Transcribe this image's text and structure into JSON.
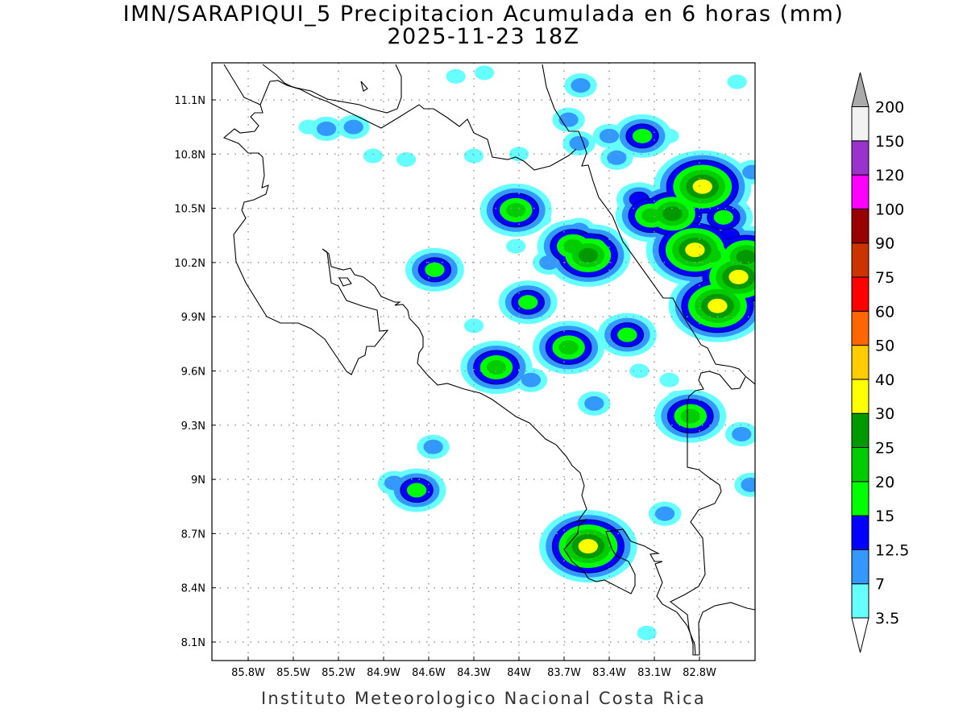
{
  "title": {
    "line1": "IMN/SARAPIQUI_5 Precipitacion Acumulada en 6 horas (mm)",
    "line2": "2025-11-23 18Z"
  },
  "footer": "Instituto Meteorologico Nacional Costa Rica",
  "chart_data": {
    "type": "heatmap",
    "title": "IMN/SARAPIQUI_5 Precipitacion Acumulada en 6 horas (mm)",
    "subtitle": "2025-11-23 18Z",
    "xlabel": "",
    "ylabel": "",
    "x_ticks": [
      "85.8W",
      "85.5W",
      "85.2W",
      "84.9W",
      "84.6W",
      "84.3W",
      "84W",
      "83.7W",
      "83.4W",
      "83.1W",
      "82.8W"
    ],
    "y_ticks": [
      "8.1N",
      "8.4N",
      "8.7N",
      "9N",
      "9.3N",
      "9.6N",
      "9.9N",
      "10.2N",
      "10.5N",
      "10.8N",
      "11.1N"
    ],
    "xlim": [
      -86.04,
      -82.43
    ],
    "ylim": [
      8.0,
      11.3
    ],
    "grid": true,
    "colorbar": {
      "placement": "right",
      "levels": [
        "3.5",
        "7",
        "12.5",
        "15",
        "20",
        "25",
        "30",
        "40",
        "50",
        "60",
        "75",
        "90",
        "100",
        "120",
        "150",
        "200"
      ],
      "level_values": [
        3.5,
        7,
        12.5,
        15,
        20,
        25,
        30,
        40,
        50,
        60,
        75,
        90,
        100,
        120,
        150,
        200
      ],
      "colors": [
        "#66ffff",
        "#3399ff",
        "#0000ff",
        "#00ff00",
        "#00cc00",
        "#009900",
        "#ffff00",
        "#ffcc00",
        "#ff6600",
        "#ff0000",
        "#cc3300",
        "#990000",
        "#ff00ff",
        "#9933cc",
        "#f2f2f2"
      ],
      "over_color": "#aaaaaa",
      "under_color": "#ffffff"
    },
    "precip_cells": [
      {
        "lon": -84.02,
        "lat": 10.49,
        "max": 20
      },
      {
        "lon": -84.12,
        "lat": 10.44,
        "max": 7
      },
      {
        "lon": -83.85,
        "lat": 10.44,
        "max": 3.5
      },
      {
        "lon": -83.54,
        "lat": 10.24,
        "max": 25
      },
      {
        "lon": -83.64,
        "lat": 10.29,
        "max": 20
      },
      {
        "lon": -83.49,
        "lat": 10.29,
        "max": 15
      },
      {
        "lon": -83.8,
        "lat": 10.2,
        "max": 7
      },
      {
        "lon": -83.6,
        "lat": 10.38,
        "max": 7
      },
      {
        "lon": -83.4,
        "lat": 10.3,
        "max": 3.5
      },
      {
        "lon": -82.98,
        "lat": 10.47,
        "max": 25
      },
      {
        "lon": -83.12,
        "lat": 10.46,
        "max": 20
      },
      {
        "lon": -83.2,
        "lat": 10.55,
        "max": 12.5
      },
      {
        "lon": -82.78,
        "lat": 10.62,
        "max": 30
      },
      {
        "lon": -82.9,
        "lat": 10.65,
        "max": 7
      },
      {
        "lon": -82.6,
        "lat": 10.67,
        "max": 7
      },
      {
        "lon": -82.83,
        "lat": 10.27,
        "max": 30
      },
      {
        "lon": -82.72,
        "lat": 10.24,
        "max": 20
      },
      {
        "lon": -82.54,
        "lat": 10.12,
        "max": 30
      },
      {
        "lon": -82.68,
        "lat": 9.96,
        "max": 30
      },
      {
        "lon": -82.49,
        "lat": 10.23,
        "max": 25
      },
      {
        "lon": -82.64,
        "lat": 10.45,
        "max": 15
      },
      {
        "lon": -82.95,
        "lat": 10.35,
        "max": 12.5
      },
      {
        "lon": -82.8,
        "lat": 10.1,
        "max": 7
      },
      {
        "lon": -82.6,
        "lat": 10.35,
        "max": 12.5
      },
      {
        "lon": -83.18,
        "lat": 10.9,
        "max": 15
      },
      {
        "lon": -83.4,
        "lat": 10.9,
        "max": 7
      },
      {
        "lon": -83.6,
        "lat": 10.86,
        "max": 7
      },
      {
        "lon": -83.59,
        "lat": 11.18,
        "max": 7
      },
      {
        "lon": -83.67,
        "lat": 10.99,
        "max": 7
      },
      {
        "lon": -83.35,
        "lat": 10.78,
        "max": 7
      },
      {
        "lon": -83.0,
        "lat": 10.9,
        "max": 3.5
      },
      {
        "lon": -82.55,
        "lat": 11.2,
        "max": 3.5
      },
      {
        "lon": -82.45,
        "lat": 10.7,
        "max": 7
      },
      {
        "lon": -84.56,
        "lat": 10.16,
        "max": 15
      },
      {
        "lon": -83.94,
        "lat": 9.98,
        "max": 15
      },
      {
        "lon": -83.28,
        "lat": 9.8,
        "max": 15
      },
      {
        "lon": -83.67,
        "lat": 9.73,
        "max": 20
      },
      {
        "lon": -84.15,
        "lat": 9.62,
        "max": 20
      },
      {
        "lon": -82.86,
        "lat": 9.35,
        "max": 20
      },
      {
        "lon": -83.54,
        "lat": 8.63,
        "max": 30
      },
      {
        "lon": -84.68,
        "lat": 8.94,
        "max": 15
      },
      {
        "lon": -84.83,
        "lat": 8.98,
        "max": 7
      },
      {
        "lon": -85.28,
        "lat": 10.94,
        "max": 7
      },
      {
        "lon": -85.1,
        "lat": 10.95,
        "max": 7
      },
      {
        "lon": -85.4,
        "lat": 10.95,
        "max": 3.5
      },
      {
        "lon": -84.42,
        "lat": 11.23,
        "max": 3.5
      },
      {
        "lon": -84.23,
        "lat": 11.25,
        "max": 3.5
      },
      {
        "lon": -84.75,
        "lat": 10.77,
        "max": 3.5
      },
      {
        "lon": -84.97,
        "lat": 10.79,
        "max": 3.5
      },
      {
        "lon": -84.3,
        "lat": 9.85,
        "max": 3.5
      },
      {
        "lon": -84.57,
        "lat": 9.18,
        "max": 7
      },
      {
        "lon": -83.92,
        "lat": 9.55,
        "max": 7
      },
      {
        "lon": -83.46,
        "lat": 8.53,
        "max": 7
      },
      {
        "lon": -83.03,
        "lat": 8.81,
        "max": 7
      },
      {
        "lon": -82.52,
        "lat": 9.25,
        "max": 7
      },
      {
        "lon": -82.46,
        "lat": 8.97,
        "max": 7
      },
      {
        "lon": -83.5,
        "lat": 9.42,
        "max": 7
      },
      {
        "lon": -84.0,
        "lat": 10.8,
        "max": 3.5
      },
      {
        "lon": -84.3,
        "lat": 10.79,
        "max": 3.5
      },
      {
        "lon": -84.02,
        "lat": 10.29,
        "max": 3.5
      },
      {
        "lon": -83.2,
        "lat": 9.6,
        "max": 3.5
      },
      {
        "lon": -83.0,
        "lat": 9.55,
        "max": 3.5
      },
      {
        "lon": -82.95,
        "lat": 9.45,
        "max": 3.5
      },
      {
        "lon": -83.58,
        "lat": 8.72,
        "max": 3.5
      },
      {
        "lon": -83.15,
        "lat": 8.15,
        "max": 3.5
      }
    ]
  }
}
